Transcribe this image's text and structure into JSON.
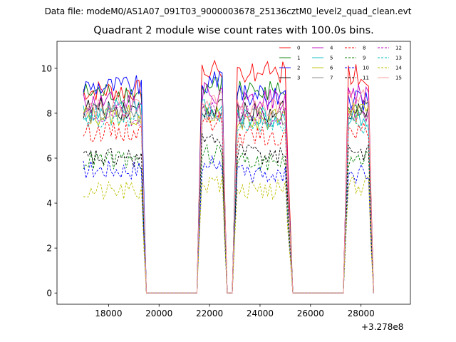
{
  "figure": {
    "suptitle": "Data file: modeM0/AS1A07_091T03_9000003678_25136cztM0_level2_quad_clean.evt",
    "offset_label": "+3.278e8"
  },
  "chart_data": {
    "type": "line",
    "title": "Quadrant 2 module wise count rates with 100.0s bins.",
    "xlabel": "",
    "ylabel": "",
    "xlim": [
      15957,
      29957
    ],
    "ylim": [
      -0.5,
      11.2
    ],
    "x_ticks": [
      18000,
      20000,
      22000,
      24000,
      26000,
      28000
    ],
    "x_tick_labels": [
      "18000",
      "20000",
      "22000",
      "24000",
      "26000",
      "28000"
    ],
    "y_ticks": [
      0,
      2,
      4,
      6,
      8,
      10
    ],
    "y_tick_labels": [
      "0",
      "2",
      "4",
      "6",
      "8",
      "10"
    ],
    "x_offset": 327800000,
    "bin_seconds": 100,
    "legend": {
      "placement": "top-right",
      "columns": 4
    },
    "segments": [
      {
        "start": 17000,
        "end": 19300,
        "ramp_to": 19500
      },
      {
        "start": 21700,
        "end": 22500,
        "ramp_from": 21500,
        "ramp_to": 22700
      },
      {
        "start": 23100,
        "end": 25000,
        "ramp_from": 22900,
        "ramp_to": 25300
      },
      {
        "start": 27500,
        "end": 28300,
        "ramp_from": 27300,
        "ramp_to": 28500
      }
    ],
    "gaps": [
      [
        19500,
        21500
      ],
      [
        22700,
        22900
      ],
      [
        25300,
        27300
      ]
    ],
    "series": [
      {
        "name": "0",
        "color": "#ff0000",
        "style": "solid",
        "levels": [
          9.0,
          10.0,
          9.8,
          9.7
        ]
      },
      {
        "name": "1",
        "color": "#008000",
        "style": "solid",
        "levels": [
          8.9,
          9.2,
          9.1,
          8.4
        ]
      },
      {
        "name": "2",
        "color": "#0000ff",
        "style": "solid",
        "levels": [
          9.2,
          9.4,
          8.8,
          8.5
        ]
      },
      {
        "name": "3",
        "color": "#000000",
        "style": "solid",
        "levels": [
          8.2,
          8.3,
          8.1,
          8.0
        ]
      },
      {
        "name": "4",
        "color": "#bf00bf",
        "style": "solid",
        "levels": [
          8.5,
          8.9,
          8.6,
          8.9
        ]
      },
      {
        "name": "5",
        "color": "#00bfbf",
        "style": "solid",
        "levels": [
          8.1,
          8.2,
          7.9,
          7.8
        ]
      },
      {
        "name": "6",
        "color": "#bfbf00",
        "style": "solid",
        "levels": [
          7.9,
          8.0,
          7.7,
          8.0
        ]
      },
      {
        "name": "7",
        "color": "#808080",
        "style": "solid",
        "levels": [
          8.0,
          8.1,
          7.8,
          8.1
        ]
      },
      {
        "name": "8",
        "color": "#ff0000",
        "style": "dashed",
        "levels": [
          7.2,
          7.6,
          7.0,
          7.3
        ]
      },
      {
        "name": "9",
        "color": "#008000",
        "style": "dashed",
        "levels": [
          5.9,
          6.2,
          5.8,
          6.0
        ]
      },
      {
        "name": "10",
        "color": "#0000ff",
        "style": "dashed",
        "levels": [
          5.5,
          5.7,
          5.3,
          5.3
        ]
      },
      {
        "name": "11",
        "color": "#000000",
        "style": "dashed",
        "levels": [
          6.0,
          6.7,
          6.2,
          6.2
        ]
      },
      {
        "name": "12",
        "color": "#bf00bf",
        "style": "dashed",
        "levels": [
          7.9,
          8.2,
          7.9,
          8.0
        ]
      },
      {
        "name": "13",
        "color": "#00bfbf",
        "style": "dashed",
        "levels": [
          7.8,
          7.9,
          7.6,
          7.5
        ]
      },
      {
        "name": "14",
        "color": "#bfbf00",
        "style": "dashed",
        "levels": [
          4.5,
          4.9,
          4.6,
          4.8
        ]
      },
      {
        "name": "15",
        "color": "#ff9999",
        "style": "solid",
        "levels": [
          8.3,
          8.6,
          8.2,
          8.6
        ]
      }
    ]
  }
}
